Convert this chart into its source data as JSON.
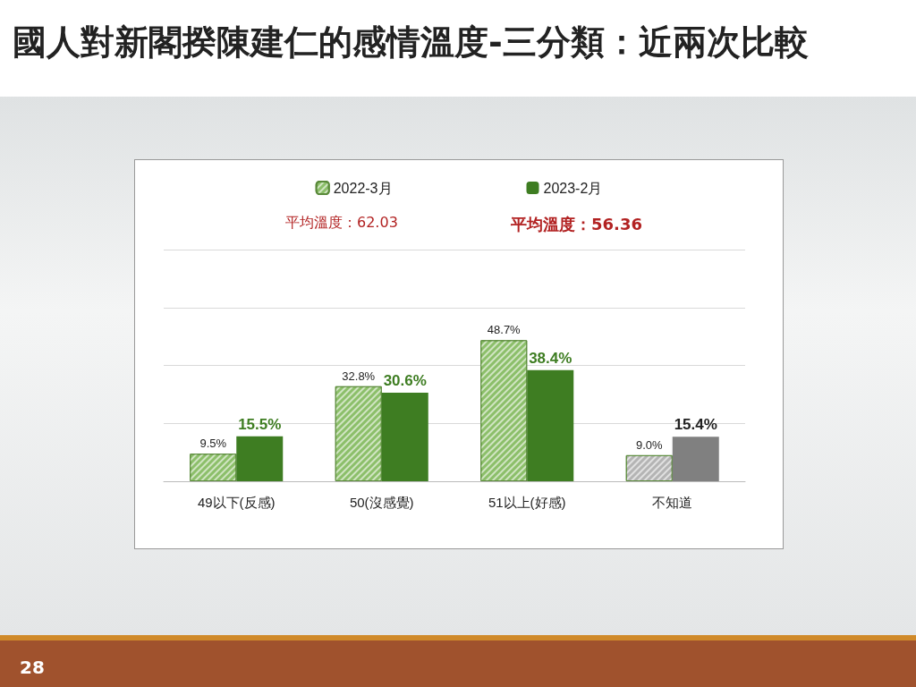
{
  "chart_data": {
    "type": "bar",
    "title": "國人對新閣揆陳建仁的感情溫度-三分類：近兩次比較",
    "categories": [
      "49以下(反感)",
      "50(沒感覺)",
      "51以上(好感)",
      "不知道"
    ],
    "series": [
      {
        "name": "2022-3月",
        "color": "#8cbf6a",
        "colors": [
          "#8cbf6a",
          "#8cbf6a",
          "#8cbf6a",
          "#b4b4b4"
        ],
        "values": [
          9.5,
          32.8,
          48.7,
          9.0
        ],
        "value_labels": [
          "9.5%",
          "32.8%",
          "48.7%",
          "9.0%"
        ]
      },
      {
        "name": "2023-2月",
        "color": "#3e7d22",
        "colors": [
          "#3e7d22",
          "#3e7d22",
          "#3e7d22",
          "#808080"
        ],
        "values": [
          15.5,
          30.6,
          38.4,
          15.4
        ],
        "value_labels": [
          "15.5%",
          "30.6%",
          "38.4%",
          "15.4%"
        ]
      }
    ],
    "ylim": [
      0,
      80
    ],
    "yticks": [
      {
        "value": 0,
        "label": null
      },
      {
        "value": 20,
        "label": null
      },
      {
        "value": 40,
        "label": null
      },
      {
        "value": 60,
        "label": null
      },
      {
        "value": 80,
        "label": null
      }
    ],
    "grid": "y",
    "legend": "top",
    "tick_labels": "x",
    "annotations": [
      "平均溫度：62.03",
      "平均溫度：56.36",
      "28"
    ]
  }
}
